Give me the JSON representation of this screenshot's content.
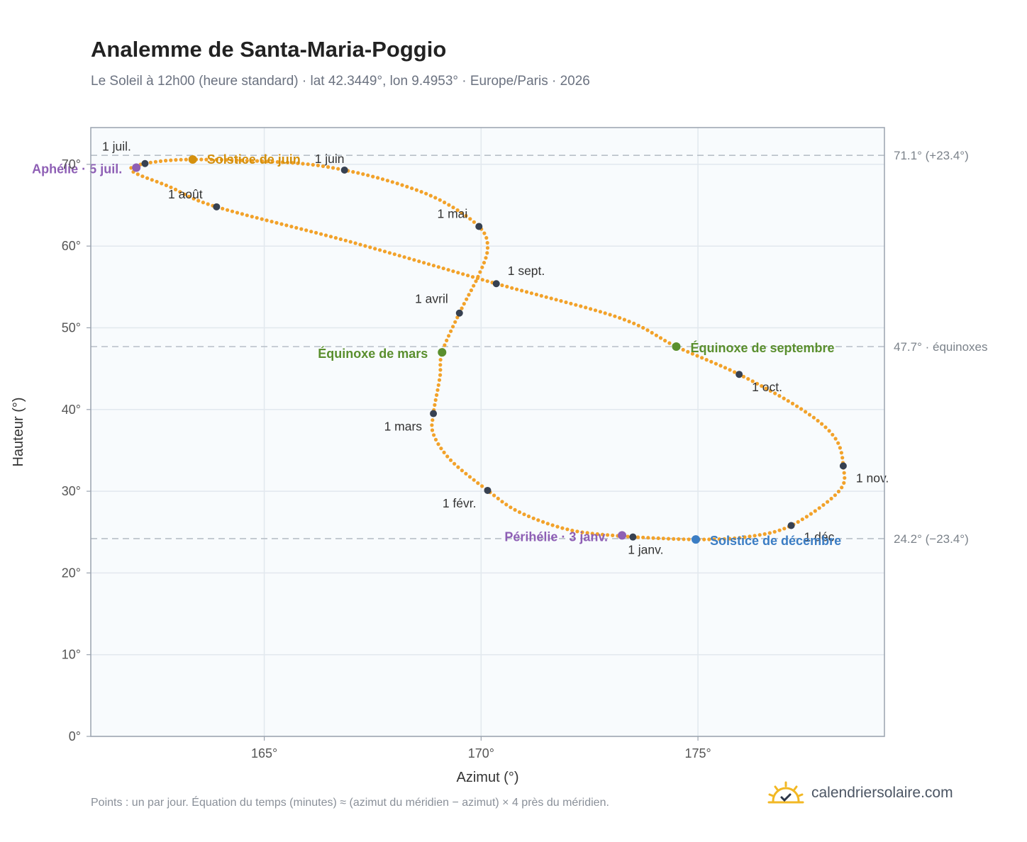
{
  "header": {
    "title": "Analemme de Santa-Maria-Poggio",
    "subtitle": "Le Soleil à 12h00 (heure standard) · lat 42.3449°, lon 9.4953° · Europe/Paris · 2026"
  },
  "footer": {
    "note": "Points : un par jour. Équation du temps (minutes) ≈ (azimut du méridien − azimut) × 4 près du méridien.",
    "brand": "calendriersolaire.com",
    "brand_icon": "sun-check-icon"
  },
  "colors": {
    "curve": "#f2a22a",
    "month_dot": "#374151",
    "solstice_june": "#d4900e",
    "solstice_dec": "#3b7dc4",
    "equinox": "#5a8f2e",
    "apsis": "#8e5fb5",
    "plot_bg": "#f8fbfd",
    "grid": "#e2e8ee",
    "frame": "#9aa3af",
    "ref_line": "#b8c0c8"
  },
  "chart_data": {
    "type": "scatter",
    "xlabel": "Azimut (°)",
    "ylabel": "Hauteur (°)",
    "xlim": [
      161,
      179.3
    ],
    "ylim": [
      0,
      74.5
    ],
    "xticks": [
      165,
      170,
      175
    ],
    "xtick_labels": [
      "165°",
      "170°",
      "175°"
    ],
    "yticks": [
      0,
      10,
      20,
      30,
      40,
      50,
      60,
      70
    ],
    "ytick_labels": [
      "0°",
      "10°",
      "20°",
      "30°",
      "40°",
      "50°",
      "60°",
      "70°"
    ],
    "grid": true,
    "reference_lines": [
      {
        "y": 71.1,
        "label": "71.1° (+23.4°)"
      },
      {
        "y": 47.7,
        "label": "47.7° · équinoxes"
      },
      {
        "y": 24.2,
        "label": "24.2° (−23.4°)"
      }
    ],
    "month_points": [
      {
        "label": "1 janv.",
        "x": 173.5,
        "y": 24.4
      },
      {
        "label": "1 févr.",
        "x": 170.15,
        "y": 30.1
      },
      {
        "label": "1 mars",
        "x": 168.9,
        "y": 39.5
      },
      {
        "label": "1 avril",
        "x": 169.5,
        "y": 51.8
      },
      {
        "label": "1 mai",
        "x": 169.95,
        "y": 62.4
      },
      {
        "label": "1 juin",
        "x": 166.85,
        "y": 69.3
      },
      {
        "label": "1 juil.",
        "x": 162.25,
        "y": 70.1
      },
      {
        "label": "1 août",
        "x": 163.9,
        "y": 64.8
      },
      {
        "label": "1 sept.",
        "x": 170.35,
        "y": 55.4
      },
      {
        "label": "1 oct.",
        "x": 175.95,
        "y": 44.3
      },
      {
        "label": "1 nov.",
        "x": 178.35,
        "y": 33.1
      },
      {
        "label": "1 déc.",
        "x": 177.15,
        "y": 25.8
      }
    ],
    "events": [
      {
        "label": "Solstice de juin",
        "x": 163.35,
        "y": 70.6,
        "kind": "solstice_june"
      },
      {
        "label": "Solstice de décembre",
        "x": 174.95,
        "y": 24.1,
        "kind": "solstice_dec"
      },
      {
        "label": "Équinoxe de mars",
        "x": 169.1,
        "y": 47.0,
        "kind": "equinox"
      },
      {
        "label": "Équinoxe de septembre",
        "x": 174.5,
        "y": 47.7,
        "kind": "equinox"
      },
      {
        "label": "Aphélie · 5 juil.",
        "x": 162.05,
        "y": 69.6,
        "kind": "apsis"
      },
      {
        "label": "Périhélie · 3 janv.",
        "x": 173.25,
        "y": 24.6,
        "kind": "apsis"
      }
    ],
    "curve_path": [
      [
        173.5,
        24.4
      ],
      [
        172.1,
        25.2
      ],
      [
        170.9,
        27.4
      ],
      [
        170.15,
        30.1
      ],
      [
        169.3,
        33.8
      ],
      [
        168.9,
        37.0
      ],
      [
        168.9,
        39.5
      ],
      [
        169.05,
        44.0
      ],
      [
        169.1,
        47.0
      ],
      [
        169.5,
        51.8
      ],
      [
        169.95,
        56.5
      ],
      [
        170.15,
        59.8
      ],
      [
        169.95,
        62.4
      ],
      [
        169.1,
        65.5
      ],
      [
        168.1,
        67.6
      ],
      [
        166.85,
        69.3
      ],
      [
        165.6,
        70.2
      ],
      [
        163.35,
        70.6
      ],
      [
        162.25,
        70.1
      ],
      [
        161.95,
        69.2
      ],
      [
        162.8,
        67.3
      ],
      [
        163.9,
        64.8
      ],
      [
        167.0,
        60.5
      ],
      [
        170.35,
        55.4
      ],
      [
        173.2,
        51.2
      ],
      [
        174.5,
        47.7
      ],
      [
        175.95,
        44.3
      ],
      [
        177.4,
        40.0
      ],
      [
        178.15,
        36.6
      ],
      [
        178.35,
        33.1
      ],
      [
        178.25,
        30.0
      ],
      [
        177.15,
        25.8
      ],
      [
        176.1,
        24.4
      ],
      [
        174.95,
        24.1
      ],
      [
        173.5,
        24.4
      ]
    ]
  }
}
